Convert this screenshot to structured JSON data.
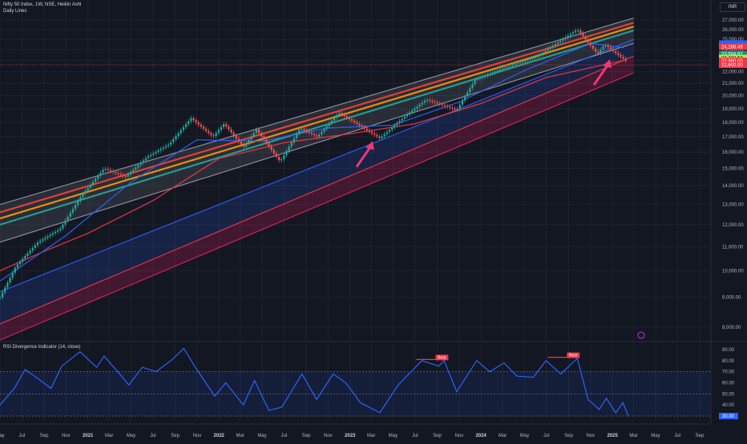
{
  "header": {
    "title": "Nifty 50 Index, 1W, NSE, Heikin Ashi",
    "subtitle": "Daily Lines",
    "currency": "INR"
  },
  "colors": {
    "background": "#131722",
    "up_candle": "#26a69a",
    "down_candle": "#ef5350",
    "rsi_line": "#2962ff",
    "channel_lower": "#e91e63",
    "arrow": "#f23673"
  },
  "chart_data": [
    {
      "type": "line",
      "title": "Nifty 50 Index, 1W, NSE, Heikin Ashi",
      "y_scale": "log",
      "ylim": [
        7600,
        27600
      ],
      "y_ticks": [
        8000,
        9000,
        10000,
        11000,
        12000,
        13000,
        14000,
        15000,
        16000,
        17000,
        18000,
        19000,
        20000,
        21000,
        22000,
        23000,
        24000,
        25000,
        26000,
        27000
      ],
      "y_tick_labels": [
        "8,000.00",
        "9,000.00",
        "10,000.00",
        "11,000.00",
        "12,000.00",
        "13,000.00",
        "14,000.00",
        "15,000.00",
        "16,000.00",
        "17,000.00",
        "18,000.00",
        "19,000.00",
        "20,000.00",
        "21,000.00",
        "22,000.00",
        "23,000.00",
        "24,000.00",
        "25,000.00",
        "26,000.00",
        "27,000.00"
      ],
      "xlim": [
        "2020-05-01",
        "2025-09-30"
      ],
      "x_ticks": [
        "2020-05-01",
        "2020-07-01",
        "2020-09-01",
        "2020-11-01",
        "2021-01-01",
        "2021-03-01",
        "2021-05-01",
        "2021-07-01",
        "2021-09-01",
        "2021-11-01",
        "2022-01-01",
        "2022-03-01",
        "2022-05-01",
        "2022-07-01",
        "2022-09-01",
        "2022-11-01",
        "2023-01-01",
        "2023-03-01",
        "2023-05-01",
        "2023-07-01",
        "2023-09-01",
        "2023-11-01",
        "2024-01-01",
        "2024-03-01",
        "2024-05-01",
        "2024-07-01",
        "2024-09-01",
        "2024-11-01",
        "2025-01-01",
        "2025-03-01",
        "2025-05-01",
        "2025-07-01",
        "2025-09-01"
      ],
      "x_tick_labels": [
        "May",
        "Jul",
        "Sep",
        "Nov",
        "2021",
        "Mar",
        "May",
        "Jul",
        "Sep",
        "Nov",
        "2022",
        "Mar",
        "May",
        "Jul",
        "Sep",
        "Nov",
        "2023",
        "Mar",
        "May",
        "Jul",
        "Sep",
        "Nov",
        "2024",
        "Mar",
        "May",
        "Jul",
        "Sep",
        "Nov",
        "2025",
        "Mar",
        "May",
        "Jul",
        "Sep"
      ],
      "price_path": [
        {
          "date": "2020-05-01",
          "close": 9000
        },
        {
          "date": "2020-06-15",
          "close": 10200
        },
        {
          "date": "2020-08-15",
          "close": 11200
        },
        {
          "date": "2020-10-15",
          "close": 11800
        },
        {
          "date": "2020-12-15",
          "close": 13500
        },
        {
          "date": "2021-02-15",
          "close": 15000
        },
        {
          "date": "2021-04-15",
          "close": 14500
        },
        {
          "date": "2021-06-15",
          "close": 15700
        },
        {
          "date": "2021-08-15",
          "close": 16500
        },
        {
          "date": "2021-10-15",
          "close": 18300
        },
        {
          "date": "2021-12-15",
          "close": 17000
        },
        {
          "date": "2022-01-15",
          "close": 17900
        },
        {
          "date": "2022-03-10",
          "close": 16300
        },
        {
          "date": "2022-04-15",
          "close": 17500
        },
        {
          "date": "2022-06-20",
          "close": 15400
        },
        {
          "date": "2022-08-15",
          "close": 17600
        },
        {
          "date": "2022-10-01",
          "close": 17000
        },
        {
          "date": "2022-12-01",
          "close": 18700
        },
        {
          "date": "2023-03-25",
          "close": 16900
        },
        {
          "date": "2023-06-01",
          "close": 18400
        },
        {
          "date": "2023-08-01",
          "close": 19700
        },
        {
          "date": "2023-10-25",
          "close": 18900
        },
        {
          "date": "2023-12-15",
          "close": 21300
        },
        {
          "date": "2024-03-01",
          "close": 22300
        },
        {
          "date": "2024-06-01",
          "close": 23300
        },
        {
          "date": "2024-09-25",
          "close": 26000
        },
        {
          "date": "2024-11-20",
          "close": 23600
        },
        {
          "date": "2024-12-10",
          "close": 24500
        },
        {
          "date": "2025-02-10",
          "close": 22900
        }
      ],
      "channels": [
        {
          "name": "upper-band-top",
          "start": {
            "date": "2020-05-01",
            "value": 13000
          },
          "end": {
            "date": "2025-03-01",
            "value": 27200
          },
          "color": "#9598a1"
        },
        {
          "name": "upper-band-red",
          "start": {
            "date": "2020-05-01",
            "value": 12600
          },
          "end": {
            "date": "2025-03-01",
            "value": 26700
          },
          "color": "#f44336"
        },
        {
          "name": "upper-band-orange",
          "start": {
            "date": "2020-05-01",
            "value": 12300
          },
          "end": {
            "date": "2025-03-01",
            "value": 26300
          },
          "color": "#ff9800"
        },
        {
          "name": "upper-band-green",
          "start": {
            "date": "2020-05-01",
            "value": 12000
          },
          "end": {
            "date": "2025-03-01",
            "value": 25900
          },
          "color": "#26a69a"
        },
        {
          "name": "upper-band-bottom",
          "start": {
            "date": "2020-05-01",
            "value": 11200
          },
          "end": {
            "date": "2025-03-01",
            "value": 24600
          },
          "color": "#9598a1"
        },
        {
          "name": "mid-blue",
          "start": {
            "date": "2020-05-01",
            "value": 9200
          },
          "end": {
            "date": "2025-03-01",
            "value": 25000
          },
          "color": "#2962ff"
        },
        {
          "name": "lower-red",
          "start": {
            "date": "2020-05-01",
            "value": 8100
          },
          "end": {
            "date": "2025-03-01",
            "value": 23400
          },
          "color": "#f23645"
        },
        {
          "name": "lower-magenta",
          "start": {
            "date": "2020-05-01",
            "value": 7600
          },
          "end": {
            "date": "2025-03-01",
            "value": 21900
          },
          "color": "#e91e63"
        }
      ],
      "moving_averages": [
        {
          "name": "ma-red",
          "color": "#f23645",
          "points": [
            {
              "date": "2020-05-01",
              "value": 10000
            },
            {
              "date": "2020-09-01",
              "value": 10800
            },
            {
              "date": "2021-01-01",
              "value": 11600
            },
            {
              "date": "2021-07-01",
              "value": 13200
            },
            {
              "date": "2022-01-01",
              "value": 15600
            },
            {
              "date": "2022-07-01",
              "value": 16600
            },
            {
              "date": "2023-01-01",
              "value": 17200
            },
            {
              "date": "2023-07-01",
              "value": 17900
            },
            {
              "date": "2024-01-01",
              "value": 19400
            },
            {
              "date": "2024-07-01",
              "value": 21500
            },
            {
              "date": "2025-02-01",
              "value": 23000
            }
          ]
        },
        {
          "name": "ma-blue",
          "color": "#2962ff",
          "points": [
            {
              "date": "2020-05-01",
              "value": 9600
            },
            {
              "date": "2020-11-01",
              "value": 11500
            },
            {
              "date": "2021-05-01",
              "value": 14200
            },
            {
              "date": "2021-11-01",
              "value": 16800
            },
            {
              "date": "2022-05-01",
              "value": 16700
            },
            {
              "date": "2022-11-01",
              "value": 17600
            },
            {
              "date": "2023-05-01",
              "value": 17800
            },
            {
              "date": "2023-11-01",
              "value": 19500
            },
            {
              "date": "2024-05-01",
              "value": 22100
            },
            {
              "date": "2024-11-01",
              "value": 24600
            },
            {
              "date": "2025-02-01",
              "value": 24200
            }
          ]
        }
      ],
      "price_labels": [
        {
          "value": 24286.49,
          "text": "24,286.49",
          "color": "#f23645"
        },
        {
          "value": 23584.97,
          "text": "23,584.97",
          "color": "#089981"
        },
        {
          "value": 23232.53,
          "text": "23,232.53",
          "color": "#cddc39"
        },
        {
          "value": 22960.0,
          "text": "22,960.00",
          "color": "#f23645"
        },
        {
          "value": 22600.0,
          "text": "22,600.00",
          "color": "#f23645"
        }
      ],
      "arrows": [
        {
          "date": "2023-03-05",
          "value": 16700
        },
        {
          "date": "2024-12-25",
          "value": 23100
        }
      ]
    },
    {
      "type": "line",
      "title": "RSI Divergence Indicator (14, close)",
      "ylim": [
        25,
        95
      ],
      "y_ticks": [
        30,
        40,
        50,
        60,
        70,
        80,
        90
      ],
      "y_tick_labels": [
        "30.00",
        "40.00",
        "50.00",
        "60.00",
        "70.00",
        "80.00",
        "90.00"
      ],
      "band": [
        30,
        70
      ],
      "midline": 50,
      "series": [
        {
          "values": [
            {
              "date": "2020-05-01",
              "value": 40
            },
            {
              "date": "2020-06-10",
              "value": 55
            },
            {
              "date": "2020-07-10",
              "value": 72
            },
            {
              "date": "2020-08-10",
              "value": 65
            },
            {
              "date": "2020-09-20",
              "value": 55
            },
            {
              "date": "2020-10-20",
              "value": 75
            },
            {
              "date": "2020-12-10",
              "value": 88
            },
            {
              "date": "2021-01-25",
              "value": 74
            },
            {
              "date": "2021-02-15",
              "value": 84
            },
            {
              "date": "2021-03-25",
              "value": 70
            },
            {
              "date": "2021-04-25",
              "value": 58
            },
            {
              "date": "2021-06-01",
              "value": 74
            },
            {
              "date": "2021-07-10",
              "value": 70
            },
            {
              "date": "2021-08-20",
              "value": 80
            },
            {
              "date": "2021-09-25",
              "value": 91
            },
            {
              "date": "2021-10-25",
              "value": 75
            },
            {
              "date": "2021-12-20",
              "value": 48
            },
            {
              "date": "2022-01-20",
              "value": 60
            },
            {
              "date": "2022-03-10",
              "value": 40
            },
            {
              "date": "2022-04-10",
              "value": 62
            },
            {
              "date": "2022-05-20",
              "value": 35
            },
            {
              "date": "2022-06-25",
              "value": 38
            },
            {
              "date": "2022-08-20",
              "value": 68
            },
            {
              "date": "2022-09-30",
              "value": 45
            },
            {
              "date": "2022-11-15",
              "value": 68
            },
            {
              "date": "2022-12-20",
              "value": 60
            },
            {
              "date": "2023-01-30",
              "value": 42
            },
            {
              "date": "2023-03-25",
              "value": 33
            },
            {
              "date": "2023-05-15",
              "value": 58
            },
            {
              "date": "2023-07-20",
              "value": 80
            },
            {
              "date": "2023-09-05",
              "value": 75
            },
            {
              "date": "2023-09-20",
              "value": 80
            },
            {
              "date": "2023-10-25",
              "value": 52
            },
            {
              "date": "2023-12-20",
              "value": 80
            },
            {
              "date": "2024-01-25",
              "value": 70
            },
            {
              "date": "2024-03-05",
              "value": 78
            },
            {
              "date": "2024-04-10",
              "value": 66
            },
            {
              "date": "2024-05-25",
              "value": 65
            },
            {
              "date": "2024-06-30",
              "value": 80
            },
            {
              "date": "2024-08-10",
              "value": 68
            },
            {
              "date": "2024-09-25",
              "value": 82
            },
            {
              "date": "2024-10-25",
              "value": 45
            },
            {
              "date": "2024-11-25",
              "value": 36
            },
            {
              "date": "2024-12-15",
              "value": 46
            },
            {
              "date": "2025-01-10",
              "value": 33
            },
            {
              "date": "2025-01-30",
              "value": 42
            },
            {
              "date": "2025-02-14",
              "value": 30
            }
          ]
        }
      ],
      "signals": [
        {
          "date": "2023-09-05",
          "value": 81,
          "label": "Bear"
        },
        {
          "date": "2024-09-05",
          "value": 83,
          "label": "Bear"
        }
      ]
    }
  ]
}
